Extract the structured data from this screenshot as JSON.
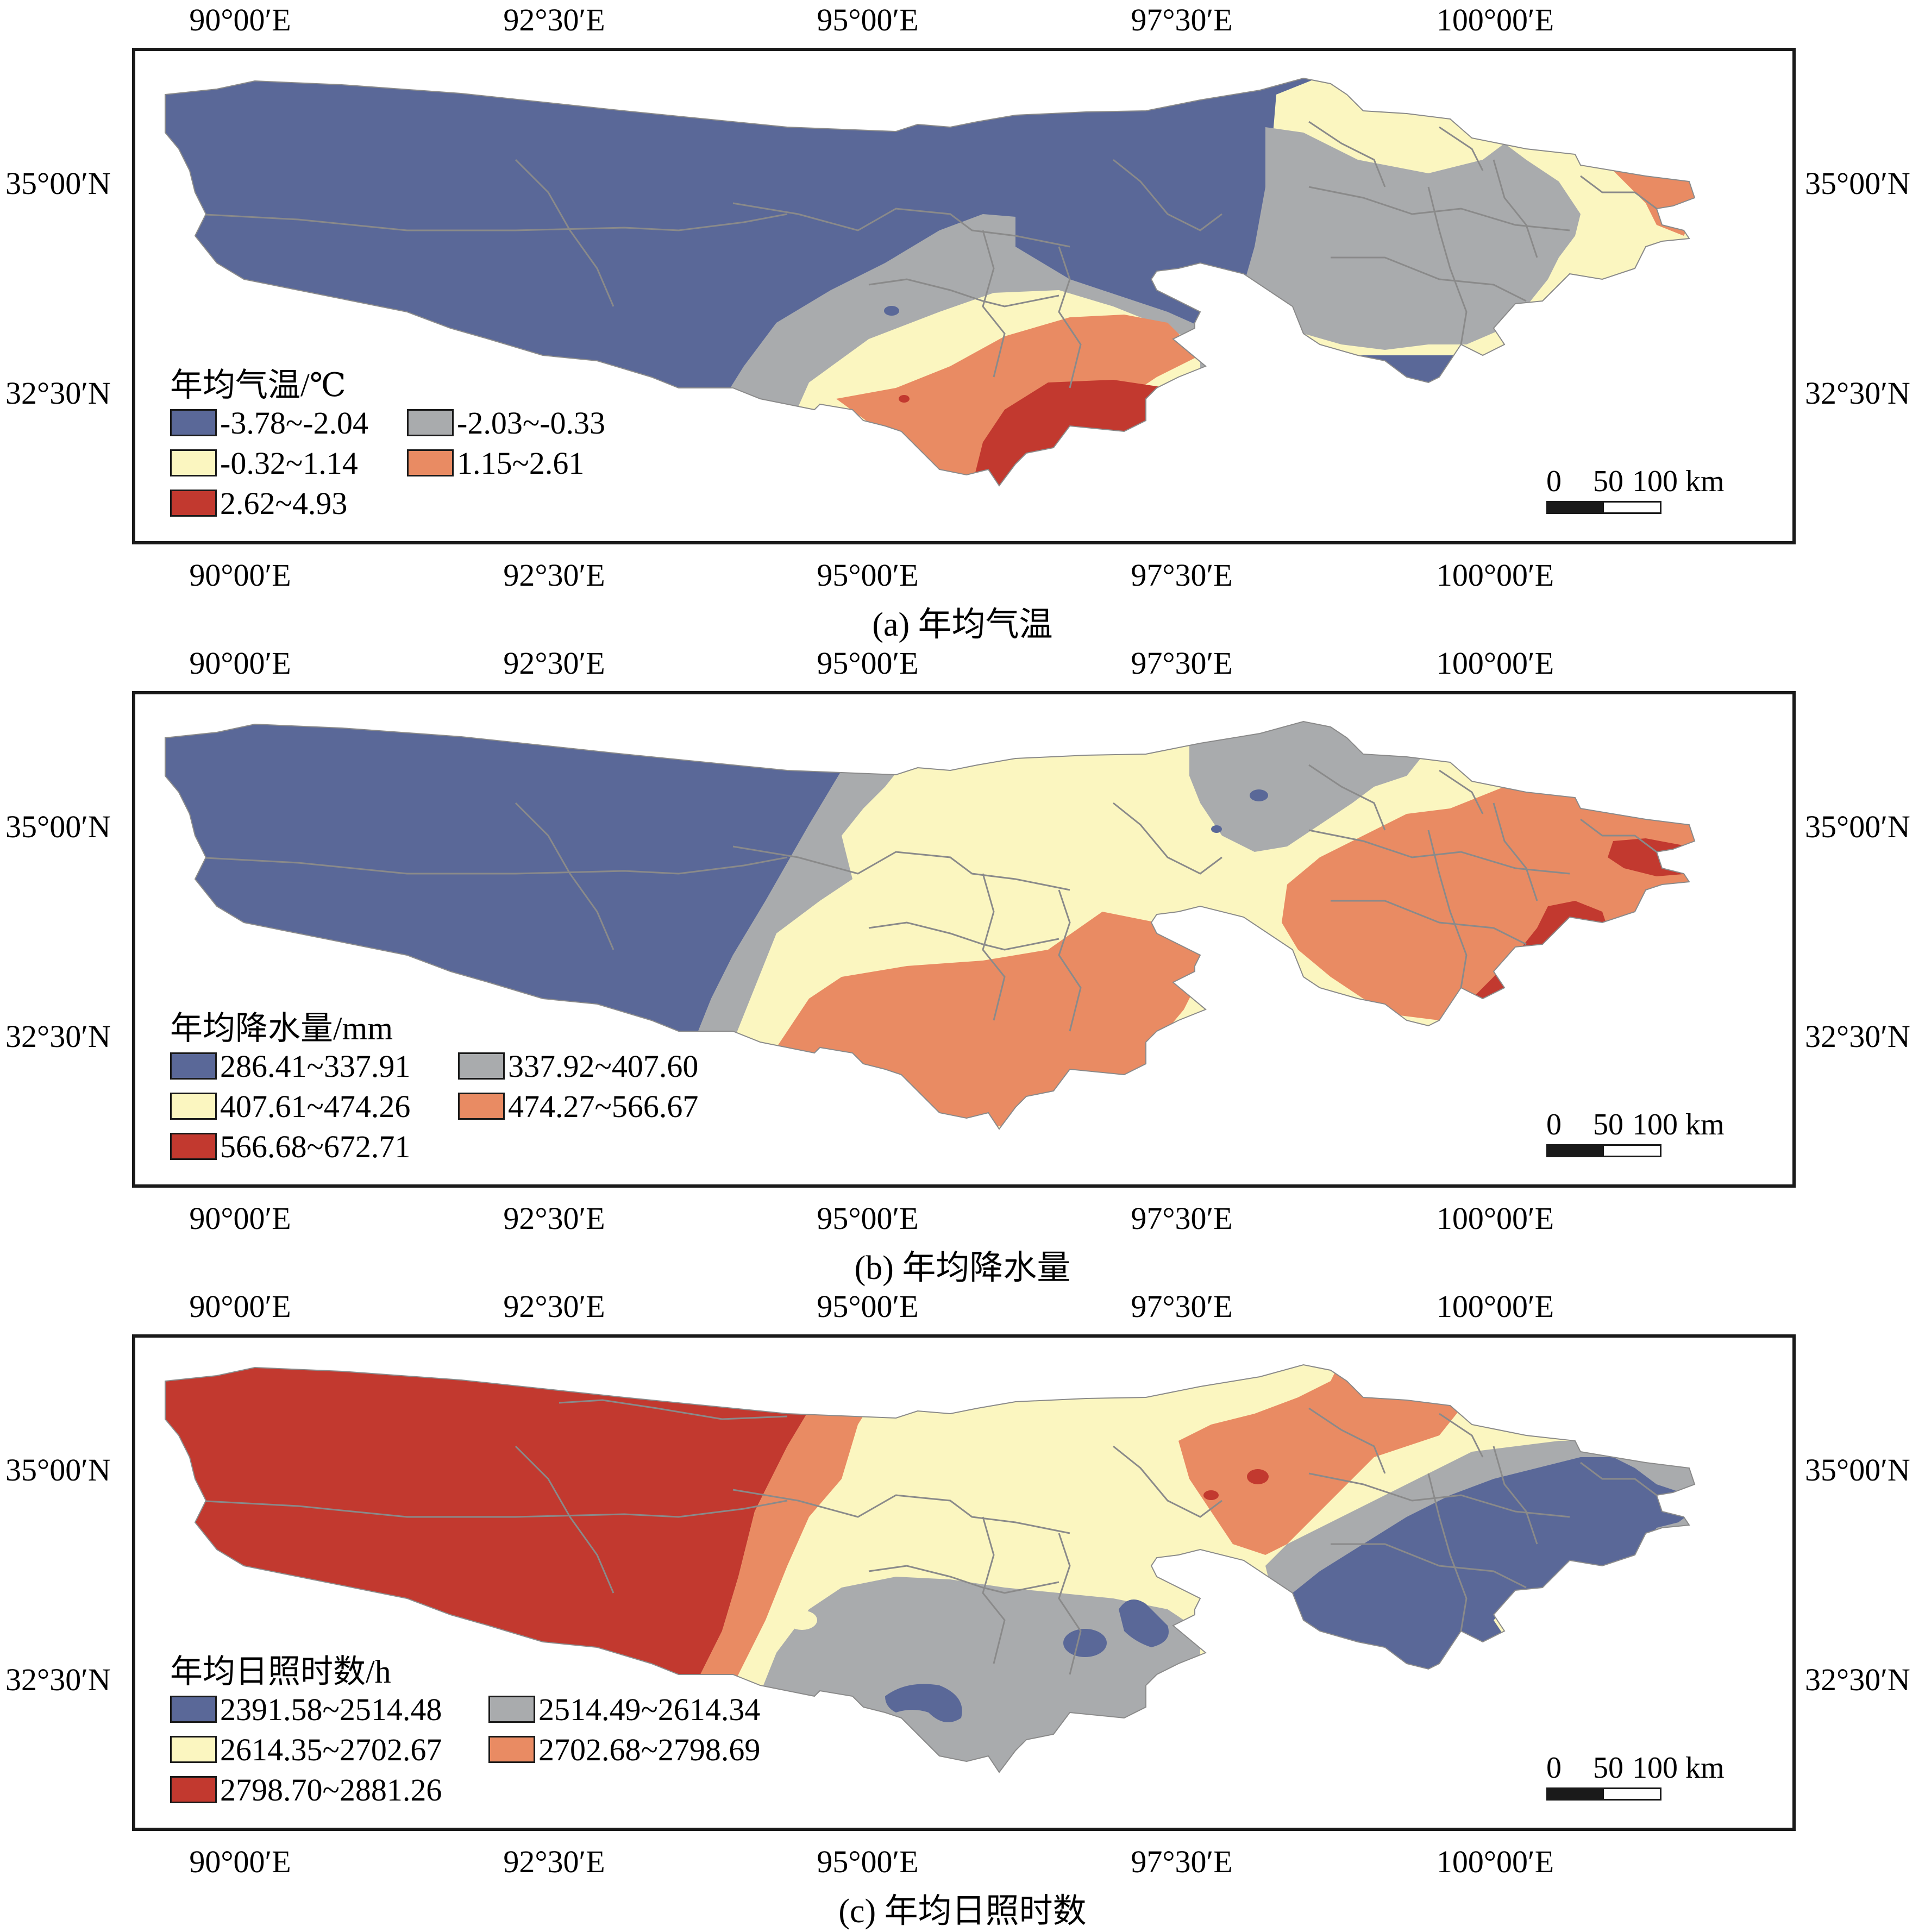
{
  "longitude_labels": [
    "90°00′E",
    "92°30′E",
    "95°00′E",
    "97°30′E",
    "100°00′E"
  ],
  "latitude_labels": [
    "35°00′N",
    "32°30′N"
  ],
  "scale": {
    "label_0": "0",
    "label_50": "50",
    "label_100": "100 km"
  },
  "colors": {
    "class1": "#5a6898",
    "class2": "#a9abad",
    "class3": "#fbf6c0",
    "class4": "#e98b63",
    "class5": "#c2392f",
    "boundary": "#8a8a8a",
    "frame": "#1a1a1a"
  },
  "panels": [
    {
      "id": "a",
      "caption": "(a) 年均气温",
      "legend_title": "年均气温/℃",
      "classes": [
        "-3.78~-2.04",
        "-2.03~-0.33",
        "-0.32~1.14",
        "1.15~2.61",
        "2.62~4.93"
      ]
    },
    {
      "id": "b",
      "caption": "(b) 年均降水量",
      "legend_title": "年均降水量/mm",
      "classes": [
        "286.41~337.91",
        "337.92~407.60",
        "407.61~474.26",
        "474.27~566.67",
        "566.68~672.71"
      ]
    },
    {
      "id": "c",
      "caption": "(c) 年均日照时数",
      "legend_title": "年均日照时数/h",
      "classes": [
        "2391.58~2514.48",
        "2514.49~2614.34",
        "2614.35~2702.67",
        "2702.68~2798.69",
        "2798.70~2881.26"
      ]
    }
  ]
}
